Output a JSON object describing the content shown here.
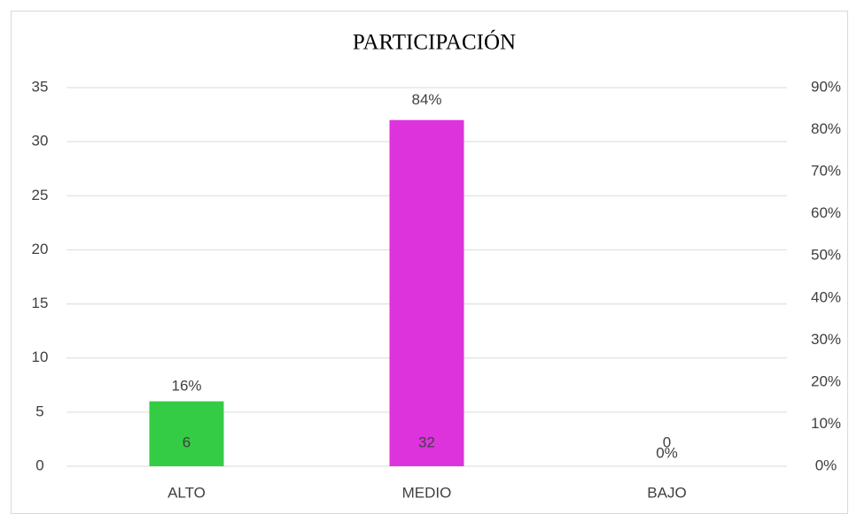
{
  "chart_data": {
    "type": "bar",
    "title": "PARTICIPACIÓN",
    "categories": [
      "ALTO",
      "MEDIO",
      "BAJO"
    ],
    "series": [
      {
        "values": [
          6,
          32,
          0
        ],
        "colors": [
          "#33cc44",
          "#dd33dd",
          "#a5a5a5"
        ]
      },
      {
        "values": [
          16,
          84,
          0
        ],
        "value_labels": [
          "16%",
          "84%",
          "0%"
        ],
        "axis": "y2"
      }
    ],
    "ylim": [
      0,
      35
    ],
    "yticks": [
      0,
      5,
      10,
      15,
      20,
      25,
      30,
      35
    ],
    "y2lim": [
      0,
      90
    ],
    "y2ticks": [
      {
        "value": 0,
        "label": "0%"
      },
      {
        "value": 10,
        "label": "10%"
      },
      {
        "value": 20,
        "label": "20%"
      },
      {
        "value": 30,
        "label": "30%"
      },
      {
        "value": 40,
        "label": "40%"
      },
      {
        "value": 50,
        "label": "50%"
      },
      {
        "value": 60,
        "label": "60%"
      },
      {
        "value": 70,
        "label": "70%"
      },
      {
        "value": 80,
        "label": "80%"
      },
      {
        "value": 90,
        "label": "90%"
      }
    ],
    "grid": true
  }
}
